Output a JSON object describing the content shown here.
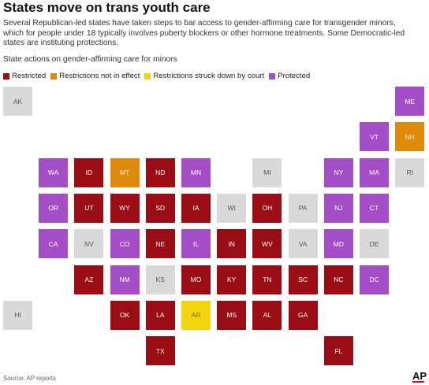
{
  "header": {
    "title": "States move on trans youth care",
    "subtitle": "Several Republican-led states have taken steps to bar access to gender-affirming care for transgender minors, which for people under 18 typically involves puberty blockers or other hormone treatments. Some Democratic-led states are instituting protections.",
    "chart_heading": "State actions on gender-affirming care for minors"
  },
  "colors": {
    "restricted": "#9b0d14",
    "not_in_effect": "#e08a0b",
    "struck_down": "#f2d40f",
    "protected": "#a34ec7",
    "none": "#d9d9d9"
  },
  "legend": [
    {
      "key": "restricted",
      "label": "Restricted"
    },
    {
      "key": "not_in_effect",
      "label": "Restrictions not in effect"
    },
    {
      "key": "struck_down",
      "label": "Restrictions struck down by court"
    },
    {
      "key": "protected",
      "label": "Protected"
    }
  ],
  "states": [
    {
      "abbr": "AK",
      "status": "none",
      "row": 0,
      "col": 0
    },
    {
      "abbr": "ME",
      "status": "protected",
      "row": 0,
      "col": 11
    },
    {
      "abbr": "VT",
      "status": "protected",
      "row": 1,
      "col": 10
    },
    {
      "abbr": "NH",
      "status": "not_in_effect",
      "row": 1,
      "col": 11
    },
    {
      "abbr": "WA",
      "status": "protected",
      "row": 2,
      "col": 1
    },
    {
      "abbr": "ID",
      "status": "restricted",
      "row": 2,
      "col": 2
    },
    {
      "abbr": "MT",
      "status": "not_in_effect",
      "row": 2,
      "col": 3
    },
    {
      "abbr": "ND",
      "status": "restricted",
      "row": 2,
      "col": 4
    },
    {
      "abbr": "MN",
      "status": "protected",
      "row": 2,
      "col": 5
    },
    {
      "abbr": "MI",
      "status": "none",
      "row": 2,
      "col": 7
    },
    {
      "abbr": "NY",
      "status": "protected",
      "row": 2,
      "col": 9
    },
    {
      "abbr": "MA",
      "status": "protected",
      "row": 2,
      "col": 10
    },
    {
      "abbr": "RI",
      "status": "none",
      "row": 2,
      "col": 11
    },
    {
      "abbr": "OR",
      "status": "protected",
      "row": 3,
      "col": 1
    },
    {
      "abbr": "UT",
      "status": "restricted",
      "row": 3,
      "col": 2
    },
    {
      "abbr": "WY",
      "status": "restricted",
      "row": 3,
      "col": 3
    },
    {
      "abbr": "SD",
      "status": "restricted",
      "row": 3,
      "col": 4
    },
    {
      "abbr": "IA",
      "status": "restricted",
      "row": 3,
      "col": 5
    },
    {
      "abbr": "WI",
      "status": "none",
      "row": 3,
      "col": 6
    },
    {
      "abbr": "OH",
      "status": "restricted",
      "row": 3,
      "col": 7
    },
    {
      "abbr": "PA",
      "status": "none",
      "row": 3,
      "col": 8
    },
    {
      "abbr": "NJ",
      "status": "protected",
      "row": 3,
      "col": 9
    },
    {
      "abbr": "CT",
      "status": "protected",
      "row": 3,
      "col": 10
    },
    {
      "abbr": "CA",
      "status": "protected",
      "row": 4,
      "col": 1
    },
    {
      "abbr": "NV",
      "status": "none",
      "row": 4,
      "col": 2
    },
    {
      "abbr": "CO",
      "status": "protected",
      "row": 4,
      "col": 3
    },
    {
      "abbr": "NE",
      "status": "restricted",
      "row": 4,
      "col": 4
    },
    {
      "abbr": "IL",
      "status": "protected",
      "row": 4,
      "col": 5
    },
    {
      "abbr": "IN",
      "status": "restricted",
      "row": 4,
      "col": 6
    },
    {
      "abbr": "WV",
      "status": "restricted",
      "row": 4,
      "col": 7
    },
    {
      "abbr": "VA",
      "status": "none",
      "row": 4,
      "col": 8
    },
    {
      "abbr": "MD",
      "status": "protected",
      "row": 4,
      "col": 9
    },
    {
      "abbr": "DE",
      "status": "none",
      "row": 4,
      "col": 10
    },
    {
      "abbr": "AZ",
      "status": "restricted",
      "row": 5,
      "col": 2
    },
    {
      "abbr": "NM",
      "status": "protected",
      "row": 5,
      "col": 3
    },
    {
      "abbr": "KS",
      "status": "none",
      "row": 5,
      "col": 4
    },
    {
      "abbr": "MO",
      "status": "restricted",
      "row": 5,
      "col": 5
    },
    {
      "abbr": "KY",
      "status": "restricted",
      "row": 5,
      "col": 6
    },
    {
      "abbr": "TN",
      "status": "restricted",
      "row": 5,
      "col": 7
    },
    {
      "abbr": "SC",
      "status": "restricted",
      "row": 5,
      "col": 8
    },
    {
      "abbr": "NC",
      "status": "restricted",
      "row": 5,
      "col": 9
    },
    {
      "abbr": "DC",
      "status": "protected",
      "row": 5,
      "col": 10
    },
    {
      "abbr": "HI",
      "status": "none",
      "row": 6,
      "col": 0
    },
    {
      "abbr": "OK",
      "status": "restricted",
      "row": 6,
      "col": 3
    },
    {
      "abbr": "LA",
      "status": "restricted",
      "row": 6,
      "col": 4
    },
    {
      "abbr": "AR",
      "status": "struck_down",
      "row": 6,
      "col": 5
    },
    {
      "abbr": "MS",
      "status": "restricted",
      "row": 6,
      "col": 6
    },
    {
      "abbr": "AL",
      "status": "restricted",
      "row": 6,
      "col": 7
    },
    {
      "abbr": "GA",
      "status": "restricted",
      "row": 6,
      "col": 8
    },
    {
      "abbr": "TX",
      "status": "restricted",
      "row": 7,
      "col": 4
    },
    {
      "abbr": "FL",
      "status": "restricted",
      "row": 7,
      "col": 9
    }
  ],
  "footer": {
    "source": "Source: AP reports",
    "logo": "AP"
  }
}
